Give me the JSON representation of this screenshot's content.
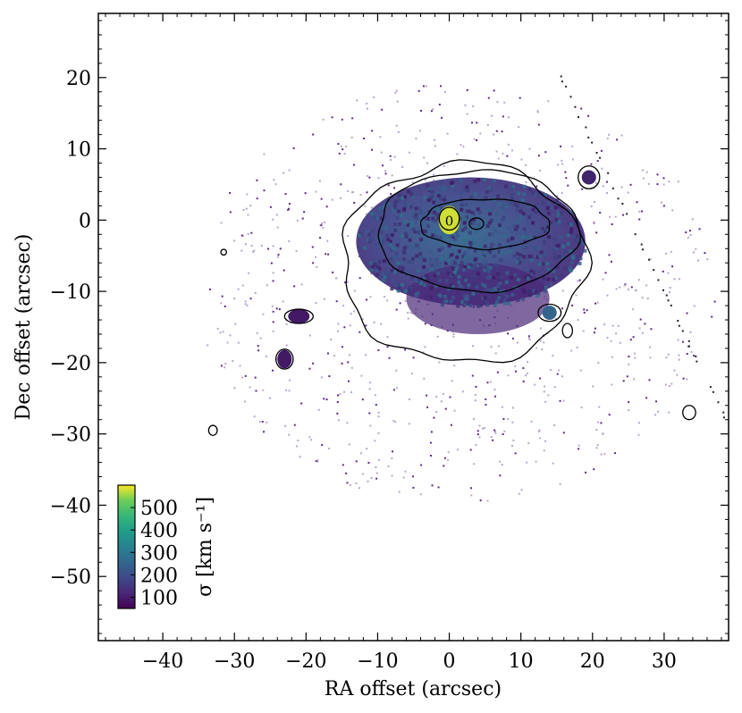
{
  "chart_data": {
    "type": "heatmap",
    "xlabel": "RA offset (arcsec)",
    "ylabel": "Dec offset (arcsec)",
    "xlim": [
      -49,
      39
    ],
    "ylim": [
      -59,
      29
    ],
    "x_ticks": [
      -40,
      -30,
      -20,
      -10,
      0,
      10,
      20,
      30
    ],
    "y_ticks": [
      20,
      10,
      0,
      -10,
      -20,
      -30,
      -40,
      -50
    ],
    "x_tick_labels": [
      "−40",
      "−30",
      "−20",
      "−10",
      "0",
      "10",
      "20",
      "30"
    ],
    "y_tick_labels": [
      "20",
      "10",
      "0",
      "−10",
      "−20",
      "−30",
      "−40",
      "−50"
    ],
    "colormap": "viridis",
    "colorbar": {
      "label": "σ [km s⁻¹]",
      "range": [
        50,
        600
      ],
      "ticks": [
        100,
        200,
        300,
        400,
        500
      ],
      "tick_labels": [
        "100",
        "200",
        "300",
        "400",
        "500"
      ],
      "placement": "lower-left"
    },
    "contour_label": "0",
    "features": [
      {
        "kind": "main-body",
        "center": [
          3,
          -3
        ],
        "semi_axes": [
          16,
          9
        ],
        "sigma": 140
      },
      {
        "kind": "nucleus",
        "center": [
          0,
          0
        ],
        "semi_axes": [
          1.5,
          2
        ],
        "sigma": 560
      },
      {
        "kind": "knot",
        "center": [
          14,
          -13
        ],
        "semi_axes": [
          1,
          1
        ],
        "sigma": 230
      },
      {
        "kind": "knot",
        "center": [
          -21,
          -13.5
        ],
        "semi_axes": [
          1.5,
          1
        ],
        "sigma": 90
      },
      {
        "kind": "knot",
        "center": [
          -23,
          -19.5
        ],
        "semi_axes": [
          1,
          1.3
        ],
        "sigma": 90
      },
      {
        "kind": "knot",
        "center": [
          19.5,
          6
        ],
        "semi_axes": [
          1,
          1
        ],
        "sigma": 110
      }
    ],
    "colors": {
      "cmap_low": "#440154",
      "cmap_mid": "#21918c",
      "cmap_high": "#fde725",
      "body_color": "#3b528b"
    }
  }
}
